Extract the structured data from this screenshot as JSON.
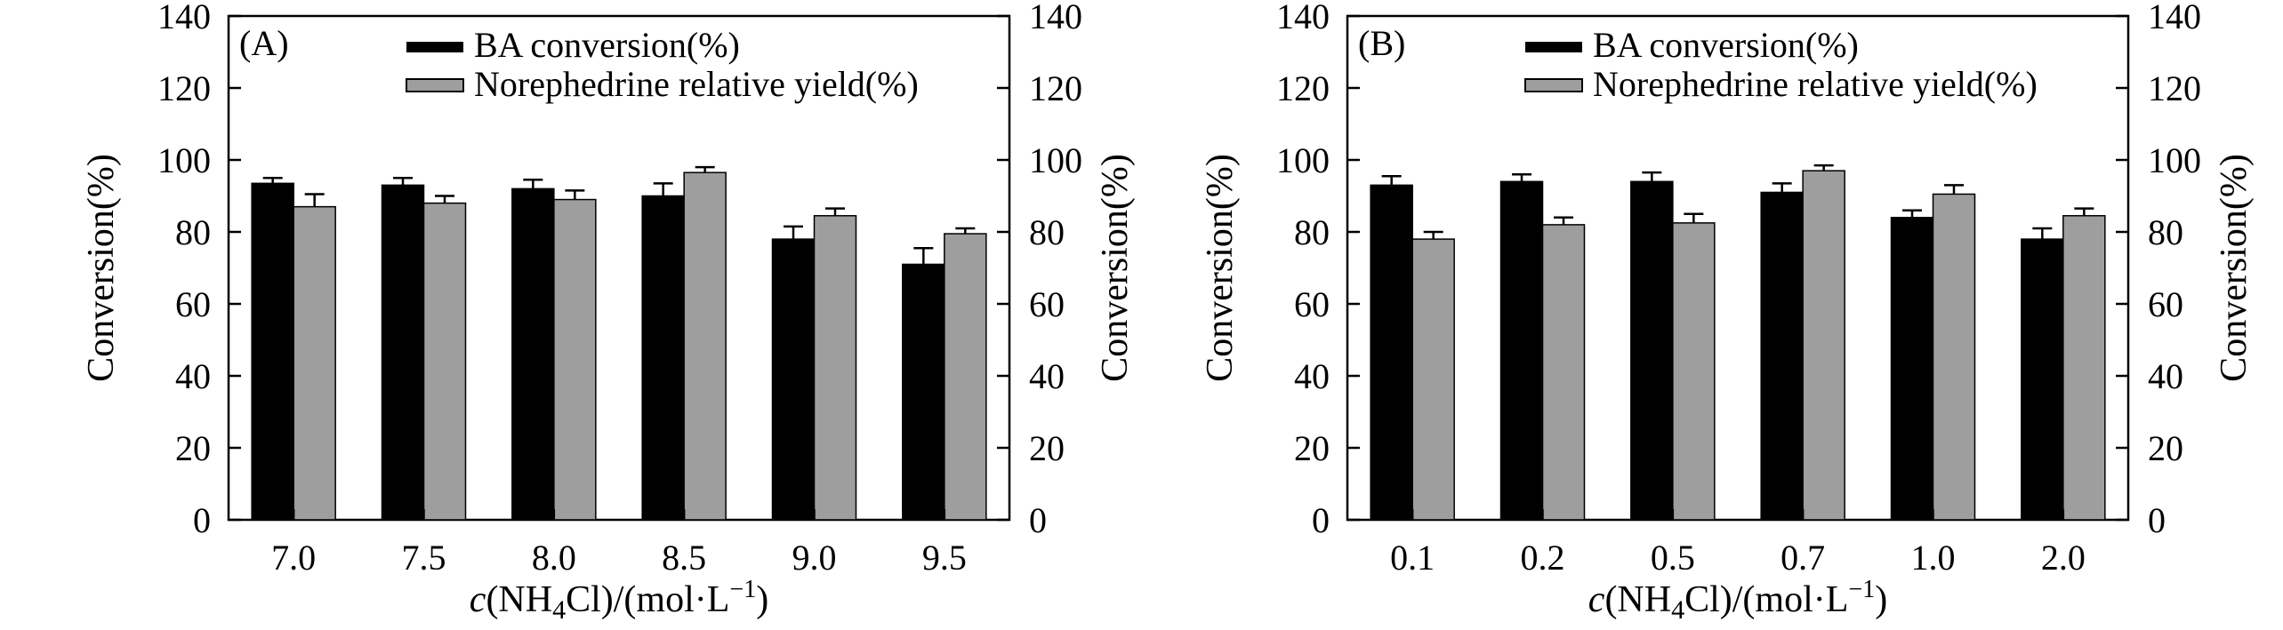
{
  "chart_data": [
    {
      "type": "bar",
      "panel_label": "(A)",
      "categories": [
        "7.0",
        "7.5",
        "8.0",
        "8.5",
        "9.0",
        "9.5"
      ],
      "series": [
        {
          "name": "BA conversion(%)",
          "color": "#000000",
          "values": [
            93.5,
            93.0,
            92.0,
            90.0,
            78.0,
            71.0
          ],
          "errors": [
            1.5,
            2.0,
            2.5,
            3.5,
            3.5,
            4.5
          ]
        },
        {
          "name": "Norephedrine relative yield(%)",
          "color": "#9e9e9e",
          "values": [
            87.0,
            88.0,
            89.0,
            96.5,
            84.5,
            79.5
          ],
          "errors": [
            3.5,
            2.0,
            2.5,
            1.5,
            2.0,
            1.5
          ]
        }
      ],
      "xlabel": {
        "prefix": "c",
        "main": "(NH",
        "sub": "4",
        "rest": "Cl)/(mol·L",
        "sup": "−1",
        "end": ")"
      },
      "ylabel_left": "Conversion(%)",
      "ylabel_right": "Conversion(%)",
      "ylim": [
        0,
        140
      ],
      "yticks": [
        "0",
        "20",
        "40",
        "60",
        "80",
        "100",
        "120",
        "140"
      ],
      "legend_position": "top-right"
    },
    {
      "type": "bar",
      "panel_label": "(B)",
      "categories": [
        "0.1",
        "0.2",
        "0.5",
        "0.7",
        "1.0",
        "2.0"
      ],
      "series": [
        {
          "name": "BA conversion(%)",
          "color": "#000000",
          "values": [
            93.0,
            94.0,
            94.0,
            91.0,
            84.0,
            78.0
          ],
          "errors": [
            2.5,
            2.0,
            2.5,
            2.5,
            2.0,
            3.0
          ]
        },
        {
          "name": "Norephedrine relative yield(%)",
          "color": "#9e9e9e",
          "values": [
            78.0,
            82.0,
            82.5,
            97.0,
            90.5,
            84.5
          ],
          "errors": [
            2.0,
            2.0,
            2.5,
            1.5,
            2.5,
            2.0
          ]
        }
      ],
      "xlabel": {
        "prefix": "c",
        "main": "(NH",
        "sub": "4",
        "rest": "Cl)/(mol·L",
        "sup": "−1",
        "end": ")"
      },
      "ylabel_left": "Conversion(%)",
      "ylabel_right": "Conversion(%)",
      "ylim": [
        0,
        140
      ],
      "yticks": [
        "0",
        "20",
        "40",
        "60",
        "80",
        "100",
        "120",
        "140"
      ],
      "legend_position": "top-right"
    }
  ]
}
